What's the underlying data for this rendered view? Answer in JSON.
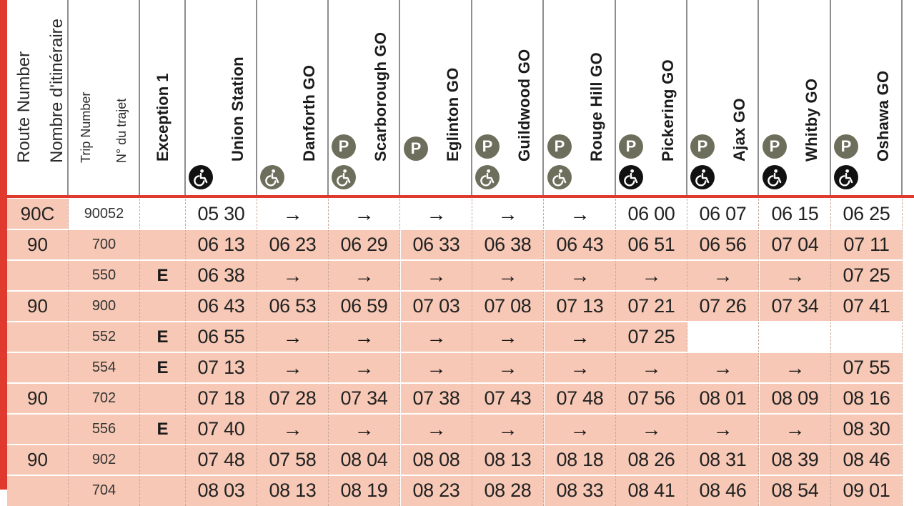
{
  "headers": {
    "route_en": "Route Number",
    "route_fr": "Nombre d'itinéraire",
    "trip_en": "Trip Number",
    "trip_fr": "N° du trajet",
    "exception": "Exception 1"
  },
  "stations": [
    {
      "name": "Union Station",
      "parking": false,
      "accessible": "black"
    },
    {
      "name": "Danforth GO",
      "parking": false,
      "accessible": "olive"
    },
    {
      "name": "Scarborough GO",
      "parking": true,
      "accessible": "olive"
    },
    {
      "name": "Eglinton GO",
      "parking": true,
      "accessible": "none"
    },
    {
      "name": "Guildwood GO",
      "parking": true,
      "accessible": "olive"
    },
    {
      "name": "Rouge Hill GO",
      "parking": true,
      "accessible": "olive"
    },
    {
      "name": "Pickering GO",
      "parking": true,
      "accessible": "black"
    },
    {
      "name": "Ajax GO",
      "parking": true,
      "accessible": "black"
    },
    {
      "name": "Whitby GO",
      "parking": true,
      "accessible": "black"
    },
    {
      "name": "Oshawa GO",
      "parking": true,
      "accessible": "black"
    }
  ],
  "icons": {
    "parking": "P",
    "accessible": "wheelchair-icon",
    "arrow": "→"
  },
  "colors": {
    "accent_red": "#e03a2f",
    "row_pink": "#f6c8b5",
    "pictogram_olive": "#6e6e5c"
  },
  "rows": [
    {
      "route": "90C",
      "trip": "90052",
      "exc": "",
      "times": [
        "05 30",
        "→",
        "→",
        "→",
        "→",
        "→",
        "06 00",
        "06 07",
        "06 15",
        "06 25"
      ],
      "highlight": "white"
    },
    {
      "route": "90",
      "trip": "700",
      "exc": "",
      "times": [
        "06 13",
        "06 23",
        "06 29",
        "06 33",
        "06 38",
        "06 43",
        "06 51",
        "06 56",
        "07 04",
        "07 11"
      ]
    },
    {
      "route": "",
      "trip": "550",
      "exc": "E",
      "times": [
        "06 38",
        "→",
        "→",
        "→",
        "→",
        "→",
        "→",
        "→",
        "→",
        "07 25"
      ]
    },
    {
      "route": "90",
      "trip": "900",
      "exc": "",
      "times": [
        "06 43",
        "06 53",
        "06 59",
        "07 03",
        "07 08",
        "07 13",
        "07 21",
        "07 26",
        "07 34",
        "07 41"
      ]
    },
    {
      "route": "",
      "trip": "552",
      "exc": "E",
      "times": [
        "06 55",
        "→",
        "→",
        "→",
        "→",
        "→",
        "07 25",
        "",
        "",
        ""
      ],
      "blank_from": 7
    },
    {
      "route": "",
      "trip": "554",
      "exc": "E",
      "times": [
        "07 13",
        "→",
        "→",
        "→",
        "→",
        "→",
        "→",
        "→",
        "→",
        "07 55"
      ]
    },
    {
      "route": "90",
      "trip": "702",
      "exc": "",
      "times": [
        "07 18",
        "07 28",
        "07 34",
        "07 38",
        "07 43",
        "07 48",
        "07 56",
        "08 01",
        "08 09",
        "08 16"
      ]
    },
    {
      "route": "",
      "trip": "556",
      "exc": "E",
      "times": [
        "07 40",
        "→",
        "→",
        "→",
        "→",
        "→",
        "→",
        "→",
        "→",
        "08 30"
      ]
    },
    {
      "route": "90",
      "trip": "902",
      "exc": "",
      "times": [
        "07 48",
        "07 58",
        "08 04",
        "08 08",
        "08 13",
        "08 18",
        "08 26",
        "08 31",
        "08 39",
        "08 46"
      ]
    },
    {
      "route": "",
      "trip": "704",
      "exc": "",
      "times": [
        "08 03",
        "08 13",
        "08 19",
        "08 23",
        "08 28",
        "08 33",
        "08 41",
        "08 46",
        "08 54",
        "09 01"
      ]
    }
  ]
}
